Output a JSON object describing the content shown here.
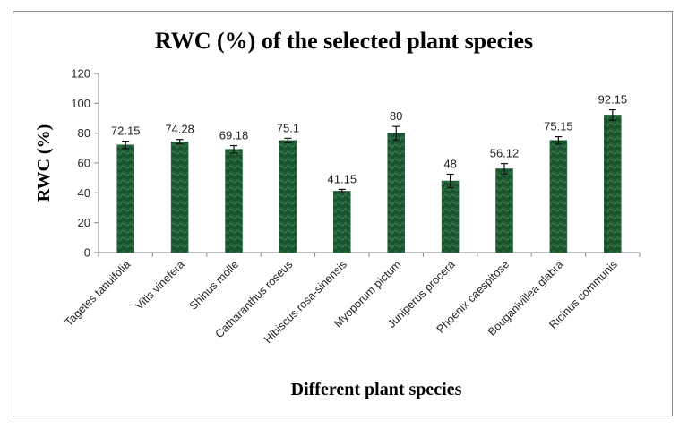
{
  "chart_data": {
    "type": "bar",
    "title": "RWC (%) of the selected plant species",
    "xlabel": "Different plant species",
    "ylabel": "RWC (%)",
    "ylim": [
      0,
      120
    ],
    "yticks": [
      0,
      20,
      40,
      60,
      80,
      100,
      120
    ],
    "grid": false,
    "legend": "none",
    "categories": [
      "Tagetes tanuifolia",
      "Vitis vinefera",
      "Shinus molle",
      "Catharanthus roseus",
      "Hibiscus rosa-sinensis",
      "Myoporum pictum",
      "Juniperus procera",
      "Phoenix caespitose",
      "Bouganivillea glabra",
      "Ricinus communis"
    ],
    "values": [
      72.15,
      74.28,
      69.18,
      75.1,
      41.15,
      80,
      48,
      56.12,
      75.15,
      92.15
    ],
    "data_labels": [
      "72.15",
      "74.28",
      "69.18",
      "75.1",
      "41.15",
      "80",
      "48",
      "56.12",
      "75.15",
      "92.15"
    ],
    "errors": [
      2.5,
      1.5,
      2.5,
      1.5,
      1.2,
      4.5,
      4.5,
      3.5,
      2.5,
      3.5
    ],
    "bar_color": "#1f5a33",
    "bar_highlight": "#2f7a48"
  }
}
